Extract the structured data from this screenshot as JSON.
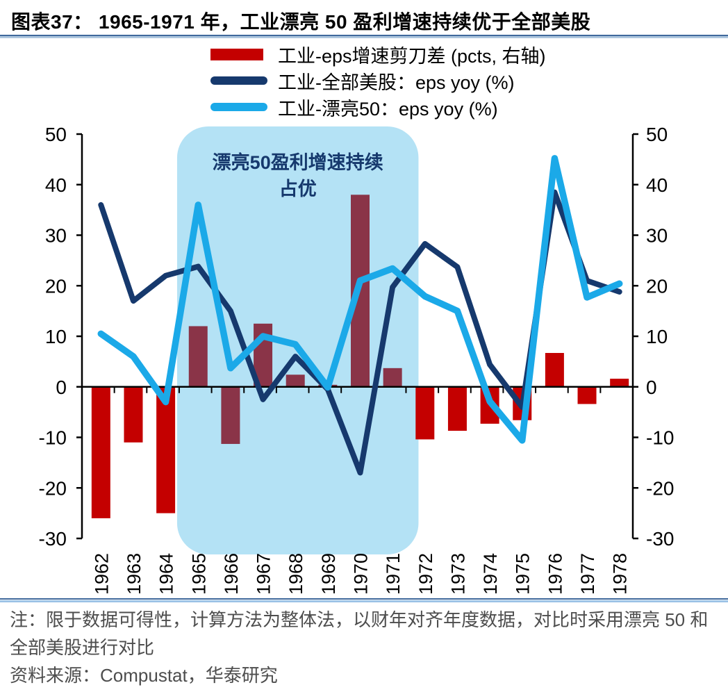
{
  "title": "图表37： 1965-1971 年，工业漂亮 50 盈利增速持续优于全部美股",
  "legend": [
    {
      "label": "工业-eps增速剪刀差 (pcts, 右轴)",
      "type": "bar",
      "color": "#C40000"
    },
    {
      "label": "工业-全部美股：eps yoy (%)",
      "type": "line",
      "color": "#16396D"
    },
    {
      "label": "工业-漂亮50：eps yoy (%)",
      "type": "line",
      "color": "#1BA9E8"
    }
  ],
  "annotation": {
    "line1": "漂亮50盈利增速持续",
    "line2": "占优",
    "color": "#16396D"
  },
  "footnotes": {
    "note": "注：限于数据可得性，计算方法为整体法，以财年对齐年度数据，对比时采用漂亮 50 和全部美股进行对比",
    "source": "资料来源：Compustat，华泰研究"
  },
  "chart_data": {
    "type": "bar",
    "categories": [
      "1962",
      "1963",
      "1964",
      "1965",
      "1966",
      "1967",
      "1968",
      "1969",
      "1970",
      "1971",
      "1972",
      "1973",
      "1974",
      "1975",
      "1976",
      "1977",
      "1978"
    ],
    "series": [
      {
        "name": "工业-eps增速剪刀差 (pcts, 右轴)",
        "type": "bar",
        "axis": "right",
        "color": "#C40000",
        "color_in_highlight": "#8A3448",
        "values": [
          -26,
          -11,
          -25,
          12,
          -11.3,
          12.5,
          2.4,
          0.4,
          38,
          3.7,
          -10.4,
          -8.7,
          -7.3,
          -6.6,
          6.7,
          -3.4,
          1.6
        ]
      },
      {
        "name": "工业-全部美股：eps yoy (%)",
        "type": "line",
        "axis": "left",
        "color": "#16396D",
        "values": [
          36,
          17,
          22,
          23.8,
          15,
          -2.5,
          6,
          -0.5,
          -17,
          19.7,
          28.3,
          23.7,
          4.4,
          -4,
          38.5,
          21,
          18.8
        ]
      },
      {
        "name": "工业-漂亮50：eps yoy (%)",
        "type": "line",
        "axis": "left",
        "color": "#1BA9E8",
        "values": [
          10.5,
          6,
          -3,
          36,
          3.7,
          10,
          8.4,
          -0.1,
          21,
          23.4,
          17.9,
          15,
          -2.9,
          -10.6,
          45.2,
          17.7,
          20.4
        ]
      }
    ],
    "ylim": [
      -30,
      50
    ],
    "ytick_step": 10,
    "grid": false,
    "legend_position": "top",
    "dual_axis_labels": true,
    "highlight_region": {
      "from_year": 1964.35,
      "to_year": 1971.8,
      "label": "漂亮50盈利增速持续占优",
      "color": "#B4E2F5"
    }
  }
}
